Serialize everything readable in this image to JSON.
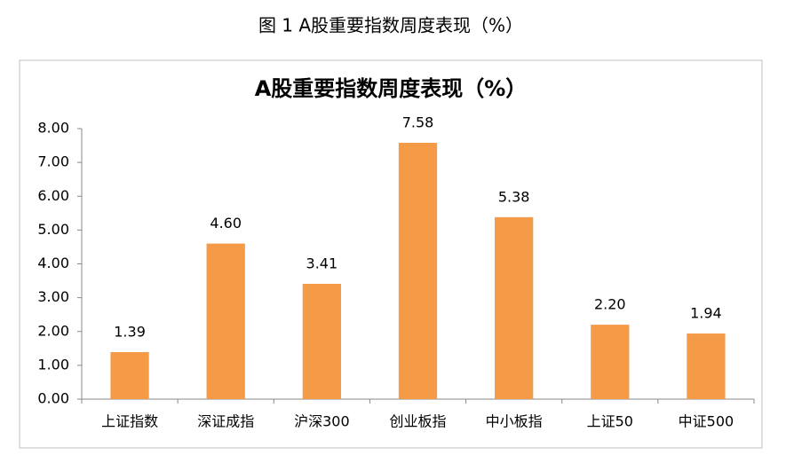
{
  "caption": "图 1 A股重要指数周度表现（%）",
  "chart_data": {
    "type": "bar",
    "title": "A股重要指数周度表现（%）",
    "categories": [
      "上证指数",
      "深证成指",
      "沪深300",
      "创业板指",
      "中小板指",
      "上证50",
      "中证500"
    ],
    "values": [
      1.39,
      4.6,
      3.41,
      7.58,
      5.38,
      2.2,
      1.94
    ],
    "value_labels": [
      "1.39",
      "4.60",
      "3.41",
      "7.58",
      "5.38",
      "2.20",
      "1.94"
    ],
    "color": "#f59a47",
    "ylim": [
      0,
      8
    ],
    "yticks": [
      {
        "value": 0,
        "label": "0.00"
      },
      {
        "value": 1,
        "label": "1.00"
      },
      {
        "value": 2,
        "label": "2.00"
      },
      {
        "value": 3,
        "label": "3.00"
      },
      {
        "value": 4,
        "label": "4.00"
      },
      {
        "value": 5,
        "label": "5.00"
      },
      {
        "value": 6,
        "label": "6.00"
      },
      {
        "value": 7,
        "label": "7.00"
      },
      {
        "value": 8,
        "label": "8.00"
      }
    ],
    "grid": false
  }
}
